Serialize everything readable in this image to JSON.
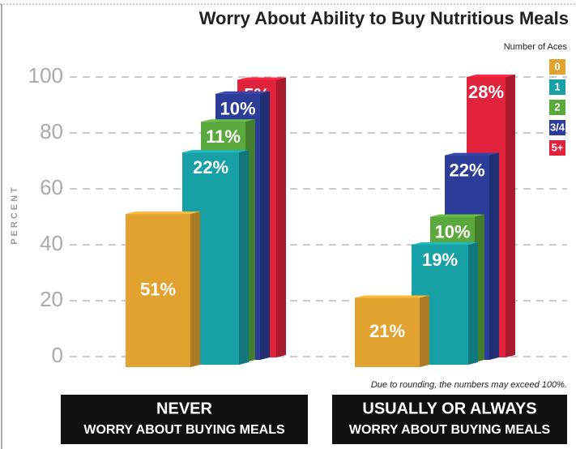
{
  "chart_data": {
    "type": "bar",
    "title": "Worry About Ability to Buy Nutritious Meals",
    "y_label": "PERCENT",
    "legend_title": "Number of Aces",
    "note": "Due to rounding, the numbers may exceed 100%.",
    "categories": [
      "NEVER",
      "USUALLY OR ALWAYS"
    ],
    "category_subtitles": [
      "WORRY ABOUT BUYING MEALS",
      "WORRY ABOUT BUYING MEALS"
    ],
    "stacked": true,
    "ylim": [
      0,
      100
    ],
    "yticks": [
      0,
      20,
      40,
      60,
      80,
      100
    ],
    "grid": true,
    "series": [
      {
        "name": "0",
        "color": "#e2a230",
        "values": [
          51,
          21
        ],
        "value_labels": [
          "51%",
          "21%"
        ]
      },
      {
        "name": "1",
        "color": "#17a0a6",
        "values": [
          22,
          19
        ],
        "value_labels": [
          "22%",
          "19%"
        ]
      },
      {
        "name": "2",
        "color": "#5ba83c",
        "values": [
          11,
          10
        ],
        "value_labels": [
          "11%",
          "10%"
        ]
      },
      {
        "name": "3/4",
        "color": "#2b3d98",
        "values": [
          10,
          22
        ],
        "value_labels": [
          "10%",
          "22%"
        ]
      },
      {
        "name": "5+",
        "color": "#e1223d",
        "values": [
          5,
          28
        ],
        "value_labels": [
          "5%",
          "28%"
        ]
      }
    ]
  }
}
